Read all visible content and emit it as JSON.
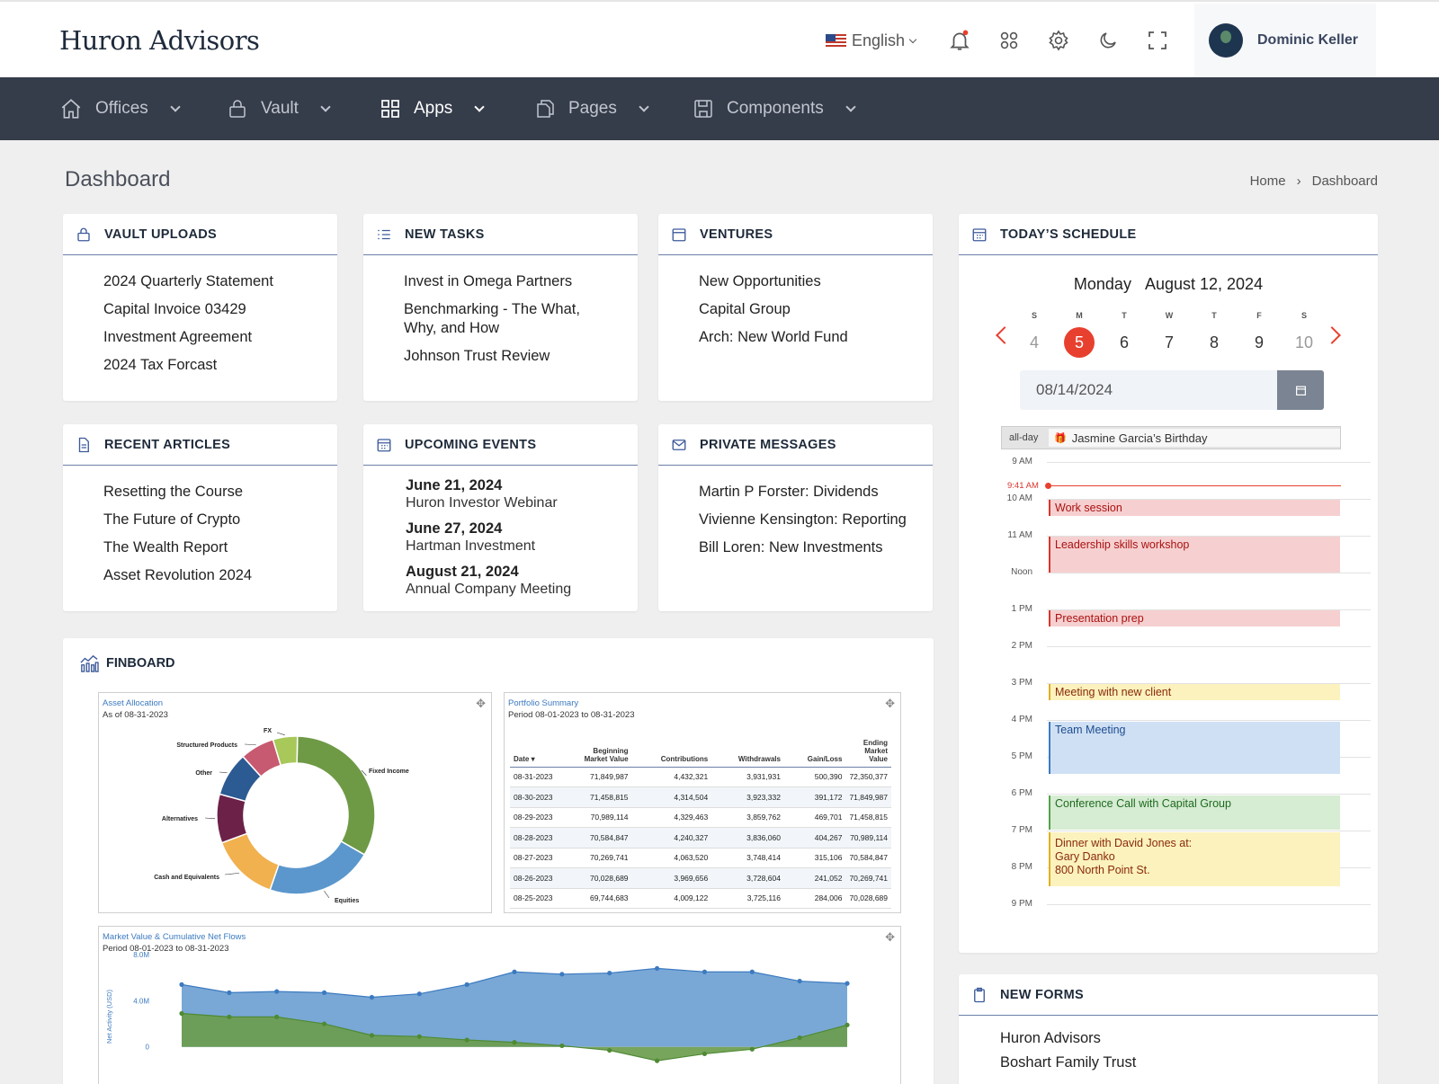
{
  "app": {
    "logo": "Huron Advisors"
  },
  "topbar": {
    "language": "English",
    "user_name": "Dominic Keller"
  },
  "nav": {
    "items": [
      {
        "label": "Offices",
        "icon": "home-icon"
      },
      {
        "label": "Vault",
        "icon": "lock-icon"
      },
      {
        "label": "Apps",
        "icon": "grid-icon",
        "active": true
      },
      {
        "label": "Pages",
        "icon": "pages-icon"
      },
      {
        "label": "Components",
        "icon": "save-icon"
      }
    ]
  },
  "page": {
    "title": "Dashboard",
    "breadcrumb": [
      "Home",
      "Dashboard"
    ]
  },
  "vault_uploads": {
    "title": "VAULT UPLOADS",
    "items": [
      "2024 Quarterly Statement",
      "Capital Invoice 03429",
      "Investment Agreement",
      "2024 Tax Forcast"
    ]
  },
  "new_tasks": {
    "title": "NEW TASKS",
    "items": [
      "Invest in Omega Partners",
      "Benchmarking - The What, Why, and How",
      "Johnson Trust Review"
    ]
  },
  "ventures": {
    "title": "VENTURES",
    "items": [
      "New Opportunities",
      "Capital Group",
      "Arch: New World Fund"
    ]
  },
  "recent_articles": {
    "title": "RECENT ARTICLES",
    "items": [
      "Resetting the Course",
      "The Future of Crypto",
      "The Wealth Report",
      "Asset Revolution 2024"
    ]
  },
  "upcoming_events": {
    "title": "UPCOMING EVENTS",
    "items": [
      {
        "date": "June 21, 2024",
        "title": "Huron Investor Webinar"
      },
      {
        "date": "June 27, 2024",
        "title": "Hartman Investment"
      },
      {
        "date": "August 21, 2024",
        "title": "Annual Company Meeting"
      }
    ]
  },
  "private_messages": {
    "title": "PRIVATE MESSAGES",
    "items": [
      "Martin P Forster: Dividends",
      "Vivienne Kensington: Reporting",
      "Bill Loren: New Investments"
    ]
  },
  "finboard": {
    "title": "FINBOARD",
    "asset_allocation": {
      "title": "Asset Allocation",
      "subtitle": "As of 08-31-2023"
    },
    "portfolio_summary": {
      "title": "Portfolio Summary",
      "subtitle": "Period 08-01-2023 to 08-31-2023",
      "columns": [
        "Date",
        "Beginning Market Value",
        "Contributions",
        "Withdrawals",
        "Gain/Loss",
        "Ending Market Value"
      ],
      "rows": [
        [
          "08-31-2023",
          "71,849,987",
          "4,432,321",
          "3,931,931",
          "500,390",
          "72,350,377"
        ],
        [
          "08-30-2023",
          "71,458,815",
          "4,314,504",
          "3,923,332",
          "391,172",
          "71,849,987"
        ],
        [
          "08-29-2023",
          "70,989,114",
          "4,329,463",
          "3,859,762",
          "469,701",
          "71,458,815"
        ],
        [
          "08-28-2023",
          "70,584,847",
          "4,240,327",
          "3,836,060",
          "404,267",
          "70,989,114"
        ],
        [
          "08-27-2023",
          "70,269,741",
          "4,063,520",
          "3,748,414",
          "315,106",
          "70,584,847"
        ],
        [
          "08-26-2023",
          "70,028,689",
          "3,969,656",
          "3,728,604",
          "241,052",
          "70,269,741"
        ],
        [
          "08-25-2023",
          "69,744,683",
          "4,009,122",
          "3,725,116",
          "284,006",
          "70,028,689"
        ]
      ]
    },
    "market_value": {
      "title": "Market Value & Cumulative Net Flows",
      "subtitle": "Period 08-01-2023 to 08-31-2023"
    }
  },
  "chart_data": [
    {
      "type": "pie",
      "title": "Asset Allocation",
      "labels": [
        "Fixed Income",
        "Equities",
        "Cash and Equivalents",
        "Alternatives",
        "Other",
        "Structured Products",
        "FX"
      ],
      "values": [
        33,
        22,
        14,
        10,
        9,
        7,
        5
      ],
      "colors": [
        "#6e9a46",
        "#5b97cc",
        "#f0b14e",
        "#6b2148",
        "#2c5a92",
        "#c75a70",
        "#a8c85a"
      ]
    },
    {
      "type": "area",
      "title": "Market Value & Cumulative Net Flows",
      "ylabel": "Net Activity (USD)",
      "yticks": [
        "8.0M",
        "4.0M",
        "0"
      ],
      "ylim": [
        -1.5,
        8
      ],
      "series": [
        {
          "name": "",
          "color": "#6ea1d3",
          "values": [
            5.4,
            4.7,
            4.8,
            4.7,
            4.3,
            4.6,
            5.4,
            6.5,
            6.3,
            6.4,
            6.8,
            6.5,
            6.5,
            5.7,
            5.5
          ]
        },
        {
          "name": "",
          "color": "#6c9d4e",
          "values": [
            2.9,
            2.6,
            2.6,
            2.0,
            1.0,
            0.9,
            0.6,
            0.4,
            0.1,
            -0.3,
            -1.2,
            -0.6,
            -0.2,
            0.8,
            1.9
          ]
        }
      ]
    }
  ],
  "schedule": {
    "title": "TODAY’S SCHEDULE",
    "day": "Monday",
    "date": "August 12, 2024",
    "week": [
      {
        "l": "S",
        "n": "4"
      },
      {
        "l": "M",
        "n": "5"
      },
      {
        "l": "T",
        "n": "6"
      },
      {
        "l": "W",
        "n": "7"
      },
      {
        "l": "T",
        "n": "8"
      },
      {
        "l": "F",
        "n": "9"
      },
      {
        "l": "S",
        "n": "10"
      }
    ],
    "date_input": "08/14/2024",
    "all_day_label": "all-day",
    "all_day_event": "Jasmine Garcia’s Birthday",
    "now_label": "9:41 AM",
    "hours": [
      "9 AM",
      "10 AM",
      "11 AM",
      "Noon",
      "1 PM",
      "2 PM",
      "3 PM",
      "4 PM",
      "5 PM",
      "6 PM",
      "7 PM",
      "8 PM",
      "9 PM"
    ],
    "events": [
      "Work session",
      "Leadership skills workshop",
      "Presentation prep",
      "Meeting with new client",
      "Team Meeting",
      "Conference Call with Capital Group",
      "Dinner with David Jones at:",
      "Gary Danko",
      "800 North Point St."
    ]
  },
  "new_forms": {
    "title": "NEW FORMS",
    "items": [
      "Huron Advisors",
      "Boshart Family Trust"
    ]
  }
}
